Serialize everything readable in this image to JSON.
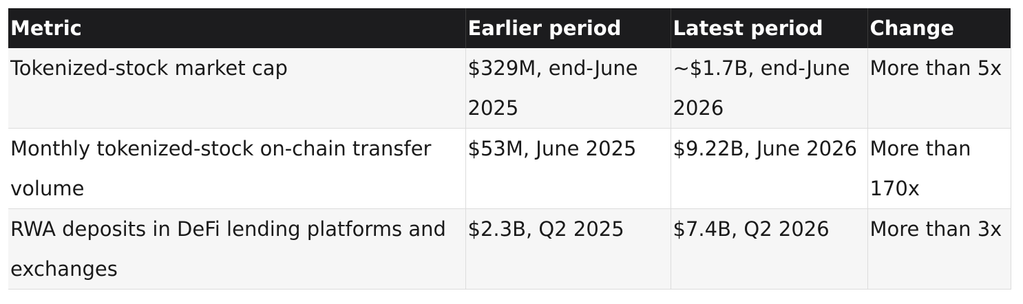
{
  "table": {
    "headers": [
      "Metric",
      "Earlier period",
      "Latest period",
      "Change"
    ],
    "rows": [
      [
        "Tokenized-stock market cap",
        "$329M, end-June 2025",
        "~$1.7B, end-June 2026",
        "More than 5x"
      ],
      [
        "Monthly tokenized-stock on-chain transfer volume",
        "$53M, June 2025",
        "$9.22B, June 2026",
        "More than 170x"
      ],
      [
        "RWA deposits in DeFi lending platforms and exchanges",
        "$2.3B, Q2 2025",
        "$7.4B, Q2 2026",
        "More than 3x"
      ]
    ]
  },
  "colors": {
    "header_bg": "#1c1c1e",
    "header_text": "#ffffff",
    "row_alt_bg": "#f6f6f6",
    "border": "#dcdcdc"
  }
}
